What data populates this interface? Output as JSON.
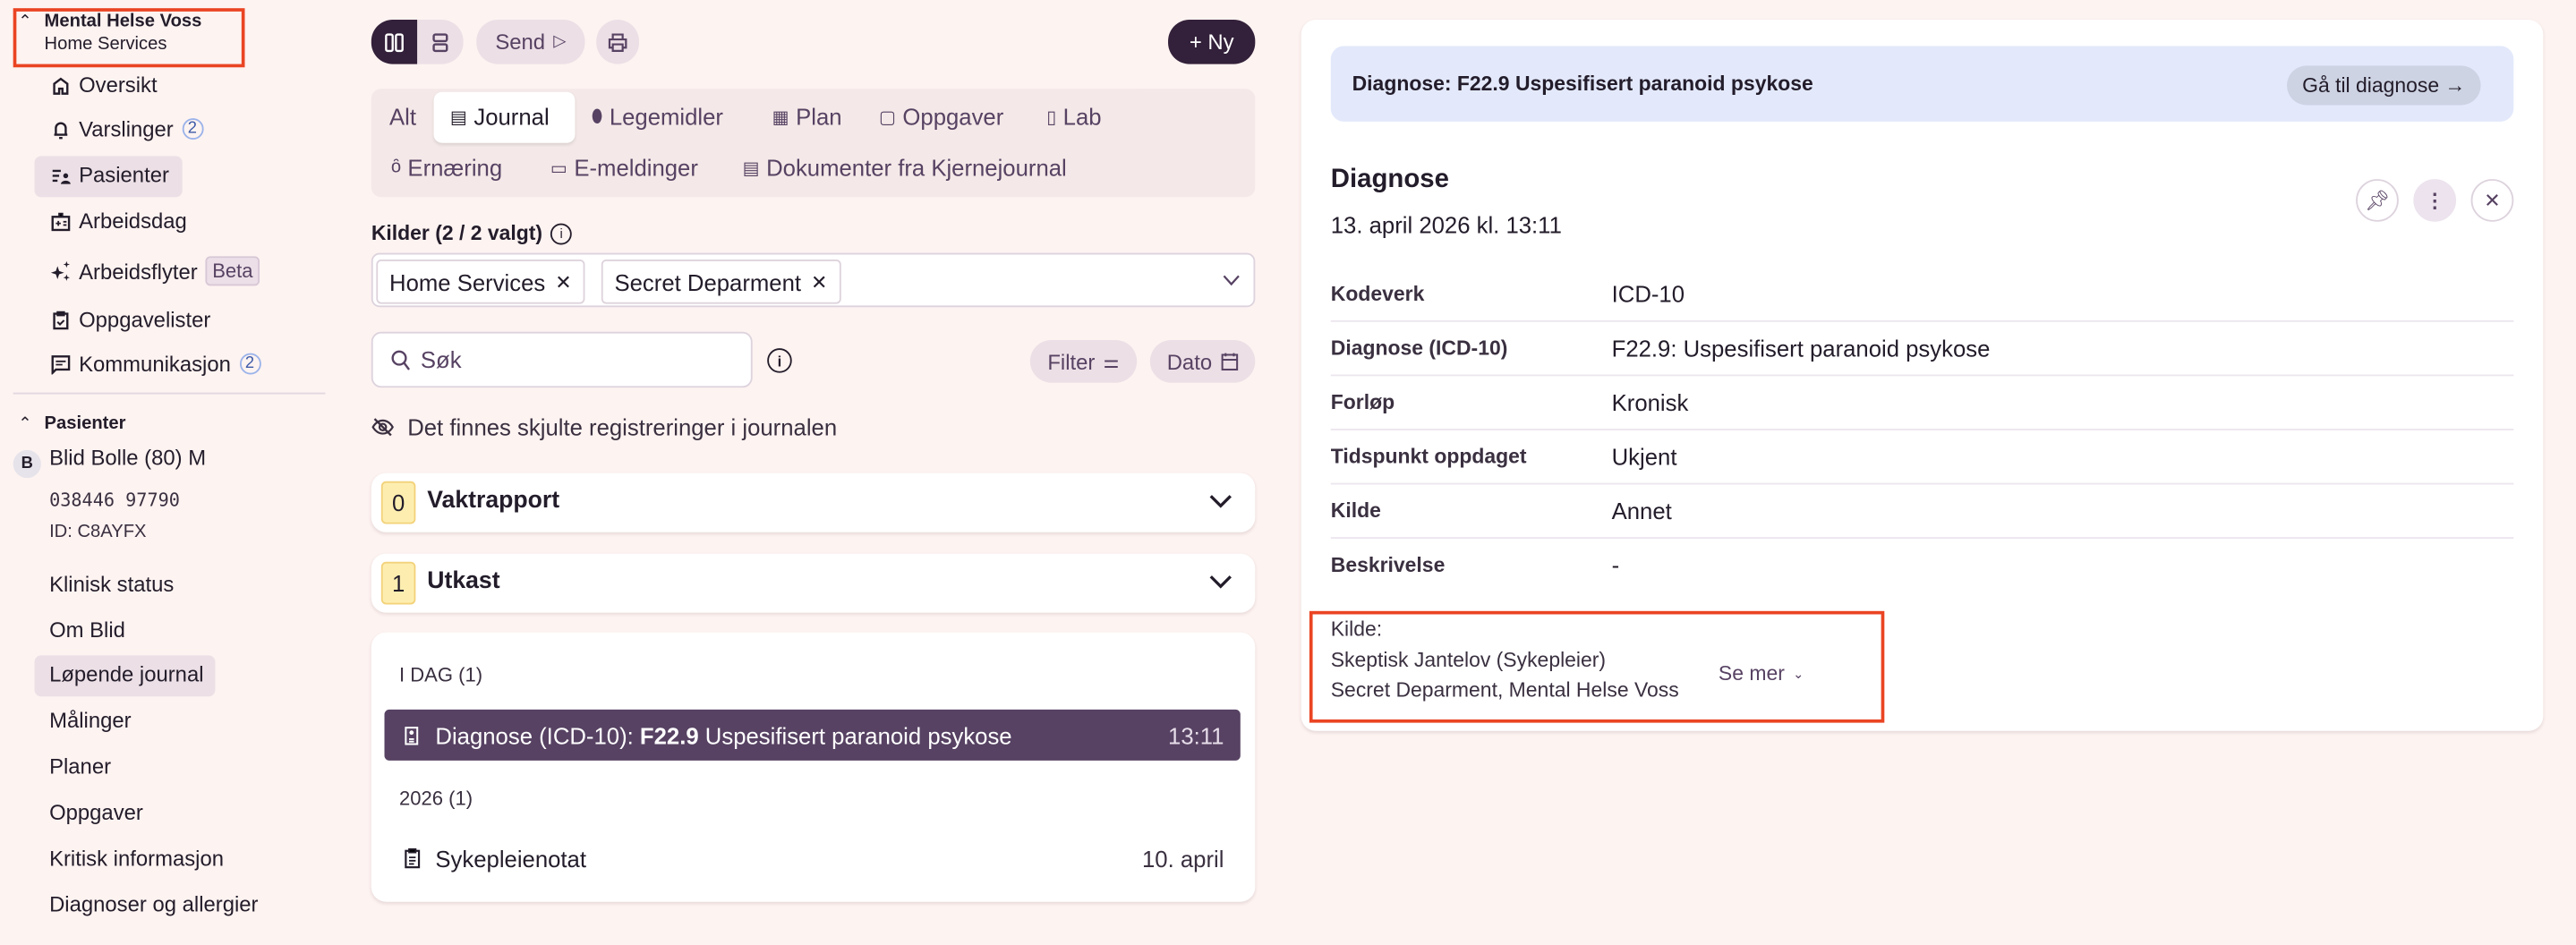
{
  "colors": {
    "background": "#fdf3f1",
    "accent": "#574263",
    "dark": "#33203a",
    "highlight": "#ece0e6",
    "banner": "#e3e9fb",
    "badge": "#fdeeb0",
    "annotation": "#ea4423"
  },
  "sidebar": {
    "org": {
      "title": "Mental Helse Voss",
      "subtitle": "Home Services"
    },
    "items": [
      {
        "label": "Oversikt",
        "icon": "home-icon"
      },
      {
        "label": "Varslinger",
        "icon": "bell-icon",
        "count": "2"
      },
      {
        "label": "Pasienter",
        "icon": "patient-list-icon",
        "active": true
      },
      {
        "label": "Arbeidsdag",
        "icon": "workday-icon"
      },
      {
        "label": "Arbeidsflyter",
        "icon": "sparkle-icon",
        "badge": "Beta"
      },
      {
        "label": "Oppgavelister",
        "icon": "clipboard-check-icon"
      },
      {
        "label": "Kommunikasjon",
        "icon": "message-icon",
        "count": "2"
      }
    ],
    "patients_header": "Pasienter",
    "patient": {
      "avatar": "B",
      "name": "Blid Bolle (80) M",
      "ssn": "038446 97790",
      "id": "ID: C8AYFX"
    },
    "patient_nav": [
      "Klinisk status",
      "Om Blid",
      "Løpende journal",
      "Målinger",
      "Planer",
      "Oppgaver",
      "Kritisk informasjon",
      "Diagnoser og allergier"
    ],
    "patient_nav_active": "Løpende journal"
  },
  "toolbar": {
    "send": "Send",
    "new": "+ Ny"
  },
  "tabs": [
    {
      "label": "Alt"
    },
    {
      "label": "Journal",
      "active": true
    },
    {
      "label": "Legemidler"
    },
    {
      "label": "Plan"
    },
    {
      "label": "Oppgaver"
    },
    {
      "label": "Lab"
    },
    {
      "label": "Ernæring"
    },
    {
      "label": "E-meldinger"
    },
    {
      "label": "Dokumenter fra Kjernejournal"
    }
  ],
  "sources": {
    "label": "Kilder (2 / 2 valgt)",
    "chips": [
      "Home Services",
      "Secret Deparment"
    ]
  },
  "search": {
    "placeholder": "Søk"
  },
  "filter": {
    "filter": "Filter",
    "date": "Dato"
  },
  "hidden_notice": "Det finnes skjulte registreringer i journalen",
  "sections": [
    {
      "count": "0",
      "title": "Vaktrapport"
    },
    {
      "count": "1",
      "title": "Utkast"
    }
  ],
  "journal": {
    "groups": [
      {
        "header": "I DAG (1)",
        "entries": [
          {
            "prefix": "Diagnose (ICD-10): ",
            "bold": "F22.9",
            "rest": " Uspesifisert paranoid psykose",
            "time": "13:11",
            "selected": true
          }
        ]
      },
      {
        "header": "2026 (1)",
        "entries": [
          {
            "title": "Sykepleienotat",
            "time": "10. april"
          }
        ]
      }
    ]
  },
  "detail": {
    "banner": "Diagnose: F22.9 Uspesifisert paranoid psykose",
    "banner_button": "Gå til diagnose →",
    "title": "Diagnose",
    "date": "13. april 2026 kl. 13:11",
    "rows": [
      {
        "label": "Kodeverk",
        "value": "ICD-10"
      },
      {
        "label": "Diagnose (ICD-10)",
        "value": "F22.9: Uspesifisert paranoid psykose"
      },
      {
        "label": "Forløp",
        "value": "Kronisk"
      },
      {
        "label": "Tidspunkt oppdaget",
        "value": "Ukjent"
      },
      {
        "label": "Kilde",
        "value": "Annet"
      },
      {
        "label": "Beskrivelse",
        "value": "-"
      }
    ],
    "source": {
      "label": "Kilde:",
      "author": "Skeptisk Jantelov (Sykepleier)",
      "org": "Secret Deparment, Mental Helse Voss",
      "more": "Se mer"
    }
  }
}
